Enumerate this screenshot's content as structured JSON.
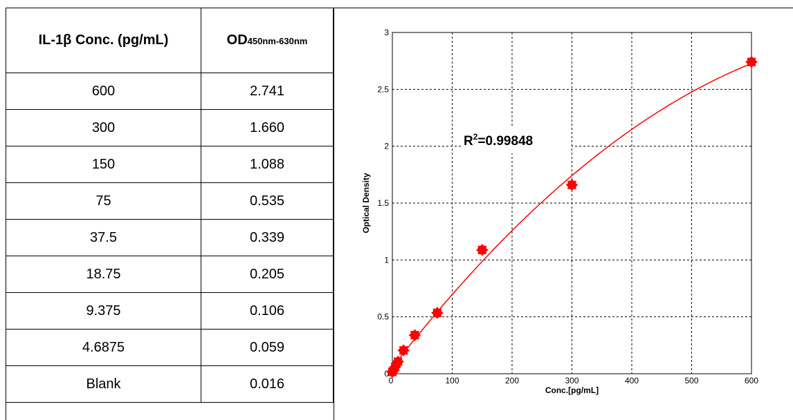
{
  "table": {
    "header": {
      "conc": "IL-1β Conc. (pg/mL)",
      "od_main": "OD",
      "od_sub": "450nm-630nm"
    },
    "rows": [
      {
        "conc": "600",
        "od": "2.741"
      },
      {
        "conc": "300",
        "od": "1.660"
      },
      {
        "conc": "150",
        "od": "1.088"
      },
      {
        "conc": "75",
        "od": "0.535"
      },
      {
        "conc": "37.5",
        "od": "0.339"
      },
      {
        "conc": "18.75",
        "od": "0.205"
      },
      {
        "conc": "9.375",
        "od": "0.106"
      },
      {
        "conc": "4.6875",
        "od": "0.059"
      },
      {
        "conc": "Blank",
        "od": "0.016"
      }
    ]
  },
  "chart_data": {
    "type": "scatter",
    "title": "",
    "xlabel": "Conc.[pg/mL]",
    "ylabel": "Optical Density",
    "xlim": [
      0,
      600
    ],
    "ylim": [
      0,
      3
    ],
    "xticks": [
      0,
      100,
      200,
      300,
      400,
      500,
      600
    ],
    "yticks": [
      0,
      0.5,
      1,
      1.5,
      2,
      2.5,
      3
    ],
    "xtick_labels": [
      "0",
      "100",
      "200",
      "300",
      "400",
      "500",
      "600"
    ],
    "ytick_labels": [
      "0",
      "0.5",
      "1",
      "1.5",
      "2",
      "2.5",
      "3"
    ],
    "grid": true,
    "grid_style": "dashed",
    "series": [
      {
        "x": [
          0,
          4.6875,
          9.375,
          18.75,
          37.5,
          75,
          150,
          300,
          600
        ],
        "y": [
          0.016,
          0.059,
          0.106,
          0.205,
          0.339,
          0.535,
          1.088,
          1.66,
          2.741
        ],
        "color": "#ff0000",
        "marker": "star",
        "fit_line": true
      }
    ],
    "annotation": {
      "base": "R",
      "sup": "2",
      "value": "=0.99848"
    }
  }
}
